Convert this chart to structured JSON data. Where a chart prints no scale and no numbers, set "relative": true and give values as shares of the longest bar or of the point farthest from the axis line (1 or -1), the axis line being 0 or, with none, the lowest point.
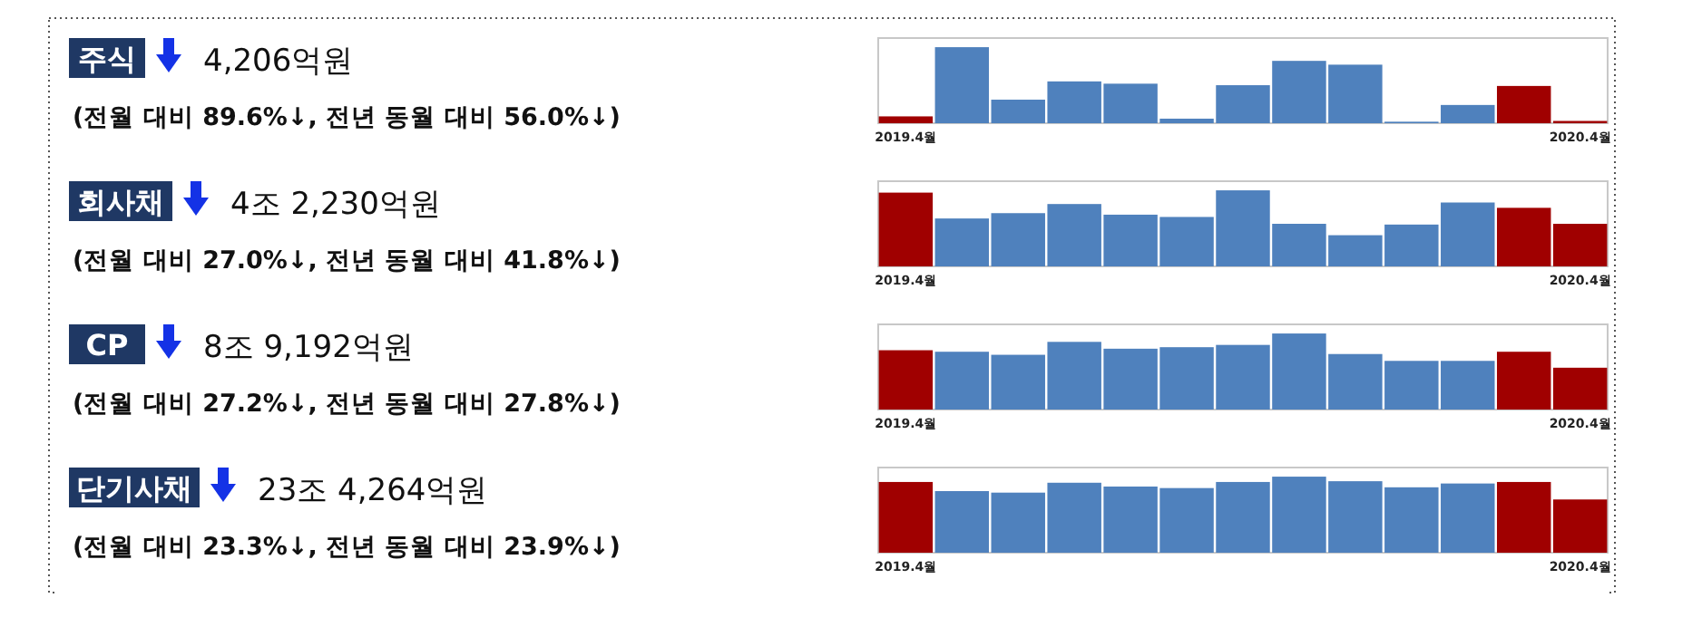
{
  "chart_data": [
    {
      "type": "bar",
      "relative": true,
      "annotations": [
        "주식",
        "4,206억원",
        "(전월 대비 89.6%↓, 전년 동월 대비 56.0%↓)"
      ],
      "categories": [
        "2019.4월",
        null,
        null,
        null,
        null,
        null,
        null,
        null,
        null,
        null,
        null,
        null,
        "2020.4월"
      ],
      "values": [
        0.09,
        1,
        0.31,
        0.55,
        0.52,
        0.06,
        0.5,
        0.82,
        0.77,
        0.02,
        0.24,
        0.49,
        0.03
      ],
      "colors": [
        "#a00000",
        "#4f81bd",
        "#4f81bd",
        "#4f81bd",
        "#4f81bd",
        "#4f81bd",
        "#4f81bd",
        "#4f81bd",
        "#4f81bd",
        "#4f81bd",
        "#4f81bd",
        "#a00000",
        "#a00000"
      ]
    },
    {
      "type": "bar",
      "relative": true,
      "annotations": [
        "회사채",
        "4조 2,230억원",
        "(전월 대비 27.0%↓, 전년 동월 대비 41.8%↓)"
      ],
      "categories": [
        "2019.4월",
        null,
        null,
        null,
        null,
        null,
        null,
        null,
        null,
        null,
        null,
        null,
        "2020.4월"
      ],
      "values": [
        0.97,
        0.63,
        0.7,
        0.82,
        0.68,
        0.65,
        1,
        0.56,
        0.41,
        0.55,
        0.84,
        0.77,
        0.56
      ],
      "colors": [
        "#a00000",
        "#4f81bd",
        "#4f81bd",
        "#4f81bd",
        "#4f81bd",
        "#4f81bd",
        "#4f81bd",
        "#4f81bd",
        "#4f81bd",
        "#4f81bd",
        "#4f81bd",
        "#a00000",
        "#a00000"
      ]
    },
    {
      "type": "bar",
      "relative": true,
      "annotations": [
        "CP",
        "8조 9,192억원",
        "(전월 대비 27.2%↓, 전년 동월 대비 27.8%↓)"
      ],
      "categories": [
        "2019.4월",
        null,
        null,
        null,
        null,
        null,
        null,
        null,
        null,
        null,
        null,
        null,
        "2020.4월"
      ],
      "values": [
        0.78,
        0.76,
        0.72,
        0.89,
        0.8,
        0.82,
        0.85,
        1,
        0.73,
        0.64,
        0.64,
        0.76,
        0.55
      ],
      "colors": [
        "#a00000",
        "#4f81bd",
        "#4f81bd",
        "#4f81bd",
        "#4f81bd",
        "#4f81bd",
        "#4f81bd",
        "#4f81bd",
        "#4f81bd",
        "#4f81bd",
        "#4f81bd",
        "#a00000",
        "#a00000"
      ]
    },
    {
      "type": "bar",
      "relative": true,
      "annotations": [
        "단기사채",
        "23조 4,264억원",
        "(전월 대비 23.3%↓, 전년 동월 대비 23.9%↓)"
      ],
      "categories": [
        "2019.4월",
        null,
        null,
        null,
        null,
        null,
        null,
        null,
        null,
        null,
        null,
        null,
        "2020.4월"
      ],
      "values": [
        0.93,
        0.81,
        0.79,
        0.92,
        0.87,
        0.85,
        0.93,
        1,
        0.94,
        0.86,
        0.91,
        0.93,
        0.7
      ],
      "colors": [
        "#a00000",
        "#4f81bd",
        "#4f81bd",
        "#4f81bd",
        "#4f81bd",
        "#4f81bd",
        "#4f81bd",
        "#4f81bd",
        "#4f81bd",
        "#4f81bd",
        "#4f81bd",
        "#a00000",
        "#a00000"
      ]
    }
  ]
}
